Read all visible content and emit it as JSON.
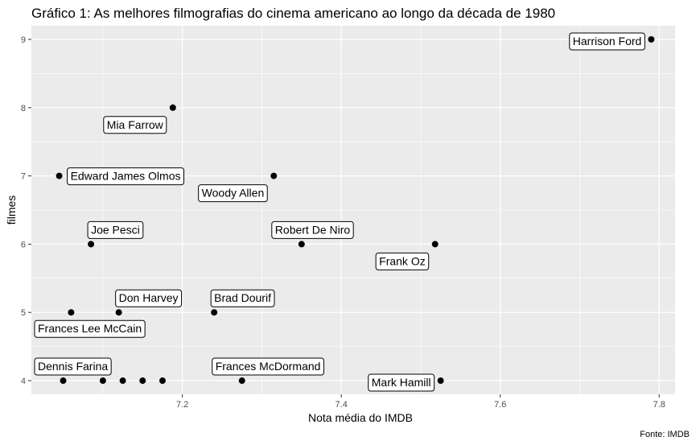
{
  "chart_data": {
    "type": "scatter",
    "title": "Gráfico 1: As melhores filmografias do cinema americano ao longo da década de 1980",
    "xlabel": "Nota média do IMDB",
    "ylabel": "filmes",
    "caption": "Fonte: IMDB",
    "xlim": [
      7.01,
      7.82
    ],
    "ylim": [
      3.8,
      9.2
    ],
    "xticks": [
      7.2,
      7.4,
      7.6,
      7.8
    ],
    "xtick_labels": [
      "7.2",
      "7.4",
      "7.6",
      "7.8"
    ],
    "yticks": [
      4,
      5,
      6,
      7,
      8,
      9
    ],
    "ytick_labels": [
      "4",
      "5",
      "6",
      "7",
      "8",
      "9"
    ],
    "grid": true,
    "points": [
      {
        "x": 7.79,
        "y": 9,
        "label": "Harrison Ford",
        "label_pos": "left"
      },
      {
        "x": 7.188,
        "y": 8,
        "label": "Mia Farrow",
        "label_pos": "below-left"
      },
      {
        "x": 7.045,
        "y": 7,
        "label": "Edward James Olmos",
        "label_pos": "right"
      },
      {
        "x": 7.315,
        "y": 7,
        "label": "Woody Allen",
        "label_pos": "below-left"
      },
      {
        "x": 7.085,
        "y": 6,
        "label": "Joe Pesci",
        "label_pos": "above-right"
      },
      {
        "x": 7.35,
        "y": 6,
        "label": "Robert De Niro",
        "label_pos": "above"
      },
      {
        "x": 7.518,
        "y": 6,
        "label": "Frank Oz",
        "label_pos": "below-left"
      },
      {
        "x": 7.06,
        "y": 5,
        "label": "Frances Lee McCain",
        "label_pos": "below"
      },
      {
        "x": 7.12,
        "y": 5,
        "label": "Don Harvey",
        "label_pos": "above-right"
      },
      {
        "x": 7.24,
        "y": 5,
        "label": "Brad Dourif",
        "label_pos": "above-right"
      },
      {
        "x": 7.05,
        "y": 4,
        "label": "Dennis Farina",
        "label_pos": "above"
      },
      {
        "x": 7.1,
        "y": 4,
        "label": "",
        "label_pos": ""
      },
      {
        "x": 7.125,
        "y": 4,
        "label": "",
        "label_pos": ""
      },
      {
        "x": 7.15,
        "y": 4,
        "label": "",
        "label_pos": ""
      },
      {
        "x": 7.175,
        "y": 4,
        "label": "",
        "label_pos": ""
      },
      {
        "x": 7.275,
        "y": 4,
        "label": "Frances McDormand",
        "label_pos": "above"
      },
      {
        "x": 7.525,
        "y": 4,
        "label": "Mark Hamill",
        "label_pos": "left"
      }
    ],
    "colors": {
      "panel": "#ebebeb",
      "grid_major": "#ffffff",
      "point": "#000000",
      "label_fill": "#ffffff",
      "label_border": "#000000"
    }
  }
}
